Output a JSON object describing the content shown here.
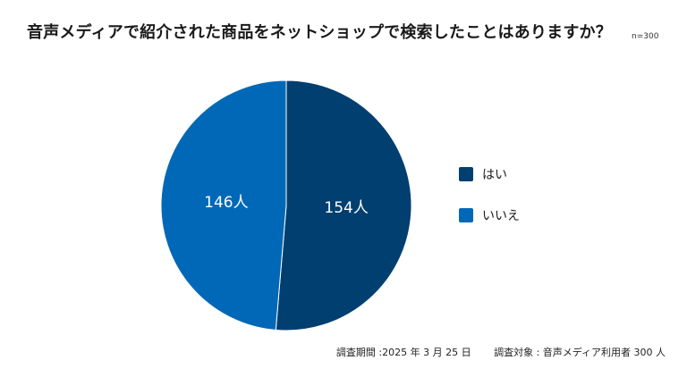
{
  "chart_data": {
    "type": "pie",
    "title": "音声メディアで紹介された商品をネットショップで検索したことはありますか？",
    "sample_size": "n=300",
    "unit": "人",
    "categories": [
      "はい",
      "いいえ"
    ],
    "values": [
      154,
      146
    ],
    "value_labels": [
      "154人",
      "146人"
    ],
    "colors": [
      "#003f70",
      "#0068b7"
    ],
    "start_angle": "12 o'clock",
    "direction": "clockwise",
    "legend_position": "right"
  },
  "footer": {
    "survey_period": "調査期間 :2025 年 3 月 25 日",
    "survey_target": "調査対象 : 音声メディア利用者 300 人"
  }
}
